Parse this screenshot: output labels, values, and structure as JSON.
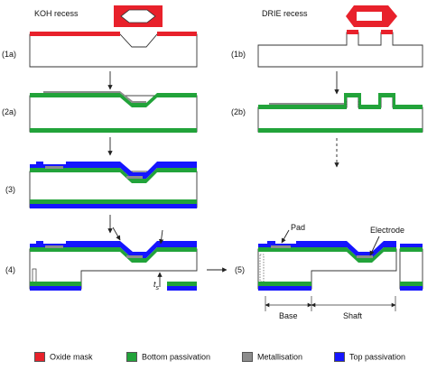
{
  "columns": {
    "left_title": "KOH recess",
    "right_title": "DRIE recess"
  },
  "step_labels": {
    "s1a": "(1a)",
    "s2a": "(2a)",
    "s3": "(3)",
    "s4": "(4)",
    "s1b": "(1b)",
    "s2b": "(2b)",
    "s5": "(5)"
  },
  "annotations": {
    "pad": "Pad",
    "electrode": "Electrode",
    "thickness_symbol": "t",
    "thickness_subscript": "s",
    "base": "Base",
    "shaft": "Shaft"
  },
  "legend": [
    {
      "label": "Oxide mask",
      "color": "#e8212b"
    },
    {
      "label": "Bottom passivation",
      "color": "#22a33a"
    },
    {
      "label": "Metallisation",
      "color": "#8c8c8c"
    },
    {
      "label": "Top passivation",
      "color": "#1515ff"
    }
  ],
  "colors": {
    "oxide": "#e8212b",
    "bottom": "#22a33a",
    "metal": "#8c8c8c",
    "top": "#1515ff",
    "outline": "#333333"
  }
}
